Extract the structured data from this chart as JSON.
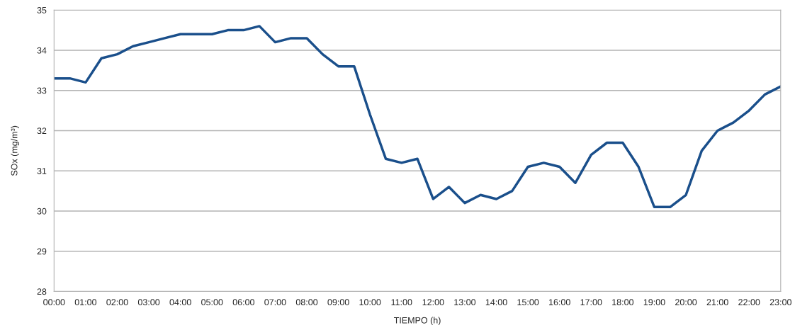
{
  "chart_data": {
    "type": "line",
    "xlabel": "TIEMPO (h)",
    "ylabel": "SOx (mg/m³)",
    "x": [
      0,
      0.5,
      1,
      1.5,
      2,
      2.5,
      3,
      3.5,
      4,
      4.5,
      5,
      5.5,
      6,
      6.5,
      7,
      7.5,
      8,
      8.5,
      9,
      9.5,
      10,
      10.5,
      11,
      11.5,
      12,
      12.5,
      13,
      13.5,
      14,
      14.5,
      15,
      15.5,
      16,
      16.5,
      17,
      17.5,
      18,
      18.5,
      19,
      19.5,
      20,
      20.5,
      21,
      21.5,
      22,
      22.5,
      23
    ],
    "series": [
      {
        "color": "#1a4f8b",
        "values": [
          33.3,
          33.3,
          33.2,
          33.8,
          33.9,
          34.1,
          34.2,
          34.3,
          34.4,
          34.4,
          34.4,
          34.5,
          34.5,
          34.6,
          34.2,
          34.3,
          34.3,
          33.9,
          33.6,
          33.6,
          32.4,
          31.3,
          31.2,
          31.3,
          30.3,
          30.6,
          30.2,
          30.4,
          30.3,
          30.5,
          31.1,
          31.2,
          31.1,
          30.7,
          31.4,
          31.7,
          31.7,
          31.1,
          30.1,
          30.1,
          30.4,
          31.5,
          32.0,
          32.2,
          32.5,
          32.9,
          33.1
        ]
      }
    ],
    "xlim": [
      0,
      23
    ],
    "xticks": [
      {
        "value": 0,
        "label": "00:00"
      },
      {
        "value": 1,
        "label": "01:00"
      },
      {
        "value": 2,
        "label": "02:00"
      },
      {
        "value": 3,
        "label": "03:00"
      },
      {
        "value": 4,
        "label": "04:00"
      },
      {
        "value": 5,
        "label": "05:00"
      },
      {
        "value": 6,
        "label": "06:00"
      },
      {
        "value": 7,
        "label": "07:00"
      },
      {
        "value": 8,
        "label": "08:00"
      },
      {
        "value": 9,
        "label": "09:00"
      },
      {
        "value": 10,
        "label": "10:00"
      },
      {
        "value": 11,
        "label": "11:00"
      },
      {
        "value": 12,
        "label": "12:00"
      },
      {
        "value": 13,
        "label": "13:00"
      },
      {
        "value": 14,
        "label": "14:00"
      },
      {
        "value": 15,
        "label": "15:00"
      },
      {
        "value": 16,
        "label": "16:00"
      },
      {
        "value": 17,
        "label": "17:00"
      },
      {
        "value": 18,
        "label": "18:00"
      },
      {
        "value": 19,
        "label": "19:00"
      },
      {
        "value": 20,
        "label": "20:00"
      },
      {
        "value": 21,
        "label": "21:00"
      },
      {
        "value": 22,
        "label": "22:00"
      },
      {
        "value": 23,
        "label": "23:00"
      }
    ],
    "ylim": [
      28,
      35
    ],
    "yticks": [
      28,
      29,
      30,
      31,
      32,
      33,
      34,
      35
    ],
    "grid": "y",
    "marker": "none",
    "line_style": "solid"
  }
}
